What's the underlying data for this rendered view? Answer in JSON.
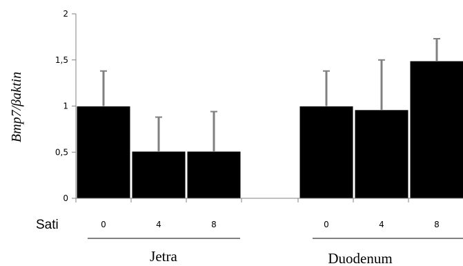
{
  "chart_data": {
    "type": "bar",
    "ylabel": "Bmp7/βaktin",
    "x_lead_label": "Sati",
    "ylim": [
      0,
      2
    ],
    "yticks": [
      {
        "value": 0,
        "label": "0"
      },
      {
        "value": 0.5,
        "label": "0,5"
      },
      {
        "value": 1,
        "label": "1"
      },
      {
        "value": 1.5,
        "label": "1,5"
      },
      {
        "value": 2,
        "label": "2"
      }
    ],
    "groups": [
      {
        "label": "Jetra",
        "categories": [
          "0",
          "4",
          "8"
        ],
        "values": [
          1.0,
          0.51,
          0.51
        ],
        "errors": [
          0.38,
          0.37,
          0.43
        ]
      },
      {
        "label": "Duodenum",
        "categories": [
          "0",
          "4",
          "8"
        ],
        "values": [
          1.0,
          0.96,
          1.49
        ],
        "errors": [
          0.38,
          0.54,
          0.24
        ]
      }
    ],
    "colors": {
      "bar": "#000000",
      "bar_edge": "#ffffff",
      "error_bar": "#808080",
      "axis": "#808080"
    }
  }
}
